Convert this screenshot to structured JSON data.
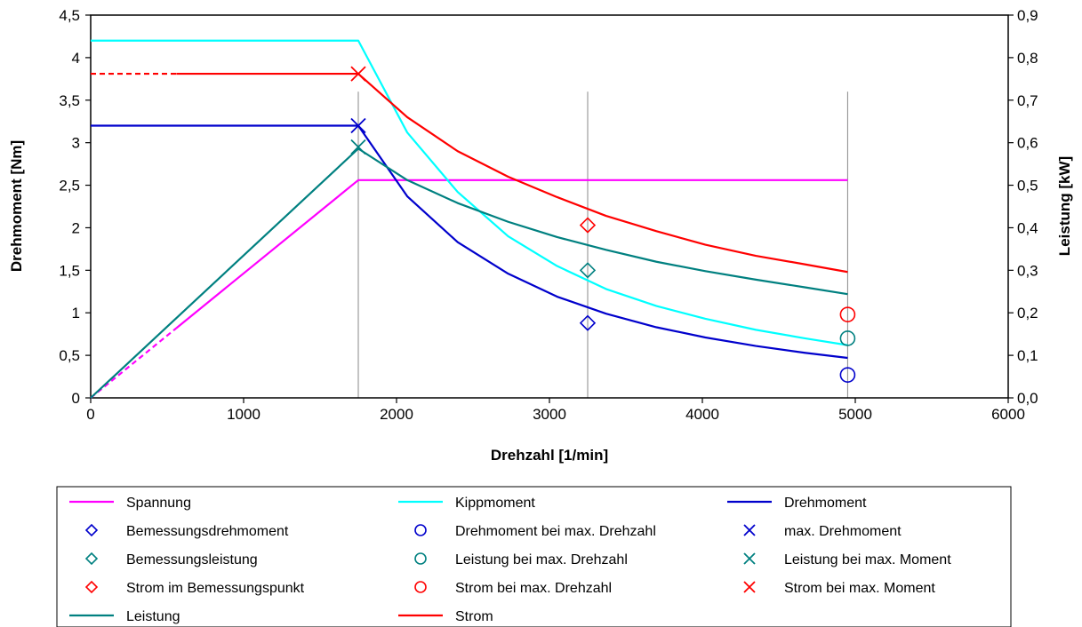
{
  "chart_data": {
    "type": "line",
    "xlabel": "Drehzahl [1/min]",
    "ylabel": "Drehmoment [Nm]",
    "y2label": "Leistung [kW]",
    "xlim": [
      0,
      6000
    ],
    "ylim": [
      0,
      4.5
    ],
    "y2lim": [
      0,
      0.9
    ],
    "x_ticks": [
      "0",
      "1000",
      "2000",
      "3000",
      "4000",
      "5000",
      "6000"
    ],
    "y_ticks": [
      "0",
      "0,5",
      "1",
      "1,5",
      "2",
      "2,5",
      "3",
      "3,5",
      "4",
      "4,5"
    ],
    "y2_ticks": [
      "0,0",
      "0,1",
      "0,2",
      "0,3",
      "0,4",
      "0,5",
      "0,6",
      "0,7",
      "0,8",
      "0,9"
    ],
    "grid": "vertical lines at 1750, 3250, 4950",
    "vlines": [
      1750,
      3250,
      4950
    ],
    "legend_position": "bottom",
    "series": [
      {
        "name": "Spannung",
        "kind": "line",
        "color": "#FF00FF",
        "axis": "left",
        "dashed_until": 1,
        "points": [
          [
            0,
            0
          ],
          [
            560,
            0.82
          ],
          [
            1750,
            2.56
          ],
          [
            4950,
            2.56
          ]
        ]
      },
      {
        "name": "Kippmoment",
        "kind": "line",
        "color": "#00FFFF",
        "axis": "left",
        "points": [
          [
            0,
            4.2
          ],
          [
            1750,
            4.2
          ],
          [
            2070,
            3.12
          ],
          [
            2400,
            2.42
          ],
          [
            2730,
            1.9
          ],
          [
            3050,
            1.55
          ],
          [
            3370,
            1.28
          ],
          [
            3700,
            1.08
          ],
          [
            4020,
            0.93
          ],
          [
            4350,
            0.8
          ],
          [
            4670,
            0.7
          ],
          [
            4950,
            0.62
          ]
        ]
      },
      {
        "name": "Drehmoment",
        "kind": "line",
        "color": "#0000CC",
        "axis": "left",
        "points": [
          [
            0,
            3.2
          ],
          [
            1750,
            3.2
          ],
          [
            2070,
            2.37
          ],
          [
            2400,
            1.83
          ],
          [
            2730,
            1.46
          ],
          [
            3050,
            1.19
          ],
          [
            3370,
            0.99
          ],
          [
            3700,
            0.83
          ],
          [
            4020,
            0.71
          ],
          [
            4350,
            0.61
          ],
          [
            4670,
            0.53
          ],
          [
            4950,
            0.47
          ]
        ]
      },
      {
        "name": "Bemessungsdrehmoment",
        "kind": "marker",
        "marker": "diamond",
        "color": "#0000CC",
        "axis": "left",
        "points": [
          [
            3250,
            0.88
          ]
        ]
      },
      {
        "name": "Drehmoment bei max. Drehzahl",
        "kind": "marker",
        "marker": "circle",
        "color": "#0000CC",
        "axis": "left",
        "points": [
          [
            4950,
            0.27
          ]
        ]
      },
      {
        "name": "max. Drehmoment",
        "kind": "marker",
        "marker": "x",
        "color": "#0000CC",
        "axis": "left",
        "points": [
          [
            1750,
            3.2
          ]
        ]
      },
      {
        "name": "Bemessungsleistung",
        "kind": "marker",
        "marker": "diamond",
        "color": "#008080",
        "axis": "right",
        "points": [
          [
            3250,
            0.3
          ]
        ]
      },
      {
        "name": "Leistung bei max. Drehzahl",
        "kind": "marker",
        "marker": "circle",
        "color": "#008080",
        "axis": "right",
        "points": [
          [
            4950,
            0.14
          ]
        ]
      },
      {
        "name": "Leistung bei max. Moment",
        "kind": "marker",
        "marker": "x",
        "color": "#008080",
        "axis": "right",
        "points": [
          [
            1750,
            0.59
          ]
        ]
      },
      {
        "name": "Strom im Bemessungspunkt",
        "kind": "marker",
        "marker": "diamond",
        "color": "#FF0000",
        "axis": "left",
        "points": [
          [
            3250,
            2.03
          ]
        ]
      },
      {
        "name": "Strom bei max. Drehzahl",
        "kind": "marker",
        "marker": "circle",
        "color": "#FF0000",
        "axis": "left",
        "points": [
          [
            4950,
            0.98
          ]
        ]
      },
      {
        "name": "Strom bei max. Moment",
        "kind": "marker",
        "marker": "x",
        "color": "#FF0000",
        "axis": "left",
        "points": [
          [
            1750,
            3.81
          ]
        ]
      },
      {
        "name": "Leistung",
        "kind": "line",
        "color": "#008080",
        "axis": "right",
        "points": [
          [
            0,
            0
          ],
          [
            1750,
            0.586
          ],
          [
            2070,
            0.512
          ],
          [
            2400,
            0.458
          ],
          [
            2730,
            0.414
          ],
          [
            3050,
            0.378
          ],
          [
            3370,
            0.348
          ],
          [
            3700,
            0.32
          ],
          [
            4020,
            0.298
          ],
          [
            4350,
            0.278
          ],
          [
            4670,
            0.26
          ],
          [
            4950,
            0.244
          ]
        ]
      },
      {
        "name": "Strom",
        "kind": "line",
        "color": "#FF0000",
        "axis": "left",
        "dashed_until": 1,
        "points": [
          [
            0,
            3.81
          ],
          [
            560,
            3.81
          ],
          [
            1750,
            3.81
          ],
          [
            2070,
            3.3
          ],
          [
            2400,
            2.9
          ],
          [
            2730,
            2.6
          ],
          [
            3050,
            2.36
          ],
          [
            3370,
            2.14
          ],
          [
            3700,
            1.96
          ],
          [
            4020,
            1.8
          ],
          [
            4350,
            1.67
          ],
          [
            4670,
            1.57
          ],
          [
            4950,
            1.48
          ]
        ]
      }
    ]
  }
}
